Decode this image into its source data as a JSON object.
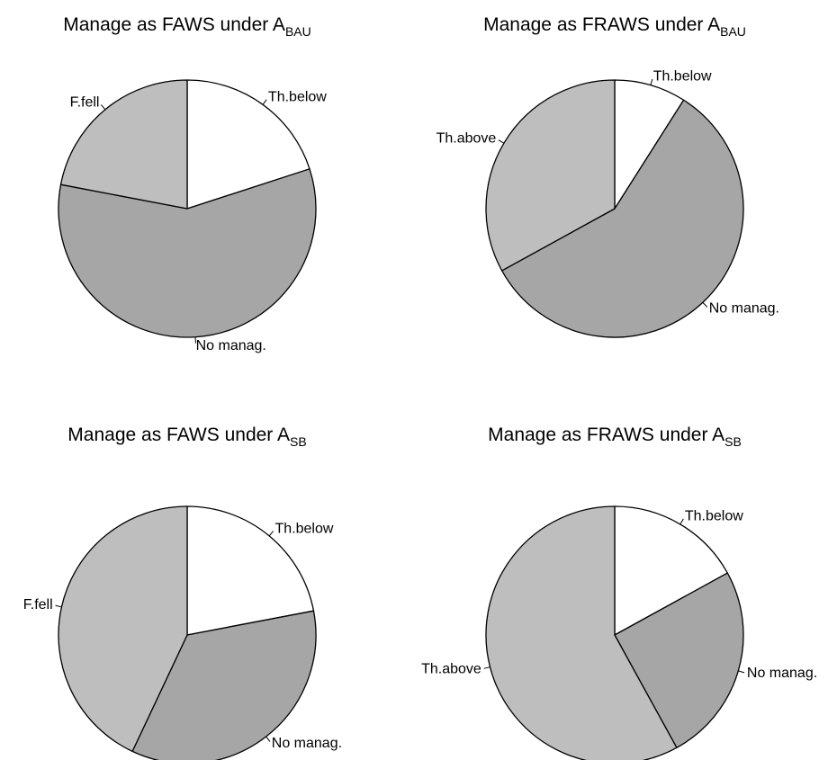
{
  "chart_data": [
    {
      "type": "pie",
      "title": "Manage as FAWS under A",
      "title_subscript": "BAU",
      "slices": [
        {
          "label": "Th.below",
          "value": 20,
          "color": "#ffffff"
        },
        {
          "label": "No manag.",
          "value": 58,
          "color": "#a6a6a6"
        },
        {
          "label": "F.fell",
          "value": 22,
          "color": "#bebebe"
        }
      ]
    },
    {
      "type": "pie",
      "title": "Manage as FRAWS under A",
      "title_subscript": "BAU",
      "slices": [
        {
          "label": "Th.below",
          "value": 9,
          "color": "#ffffff"
        },
        {
          "label": "No manag.",
          "value": 58,
          "color": "#a6a6a6"
        },
        {
          "label": "Th.above",
          "value": 33,
          "color": "#bebebe"
        }
      ]
    },
    {
      "type": "pie",
      "title": "Manage as FAWS under A",
      "title_subscript": "SB",
      "slices": [
        {
          "label": "Th.below",
          "value": 22,
          "color": "#ffffff"
        },
        {
          "label": "No manag.",
          "value": 35,
          "color": "#a6a6a6"
        },
        {
          "label": "F.fell",
          "value": 43,
          "color": "#bebebe"
        }
      ]
    },
    {
      "type": "pie",
      "title": "Manage as FRAWS under A",
      "title_subscript": "SB",
      "slices": [
        {
          "label": "Th.below",
          "value": 17,
          "color": "#ffffff"
        },
        {
          "label": "No manag.",
          "value": 25,
          "color": "#a6a6a6"
        },
        {
          "label": "Th.above",
          "value": 58,
          "color": "#bebebe"
        }
      ]
    }
  ]
}
